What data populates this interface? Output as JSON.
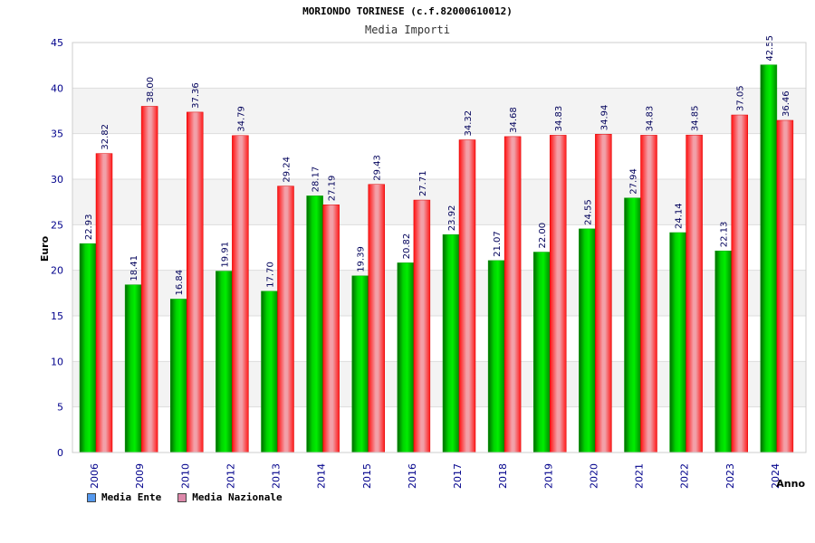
{
  "chart_data": {
    "type": "bar",
    "title": "MORIONDO TORINESE (c.f.82000610012)",
    "subtitle": "Media Importi",
    "xlabel": "Anno",
    "ylabel": "Euro",
    "ylim": [
      0,
      45
    ],
    "yticks": [
      0,
      5,
      10,
      15,
      20,
      25,
      30,
      35,
      40,
      45
    ],
    "grid": true,
    "legend_position": "bottom-left",
    "categories": [
      "2006",
      "2009",
      "2010",
      "2012",
      "2013",
      "2014",
      "2015",
      "2016",
      "2017",
      "2018",
      "2019",
      "2020",
      "2021",
      "2022",
      "2023",
      "2024"
    ],
    "series": [
      {
        "name": "Media Ente",
        "color": "#00c000",
        "legend_color": "#5599ee",
        "values": [
          22.93,
          18.41,
          16.84,
          19.91,
          17.7,
          28.17,
          19.39,
          20.82,
          23.92,
          21.07,
          22.0,
          24.55,
          27.94,
          24.14,
          22.13,
          42.55
        ],
        "labels": [
          "22.93",
          "18.41",
          "16.84",
          "19.91",
          "17.70",
          "28.17",
          "19.39",
          "20.82",
          "23.92",
          "21.07",
          "22.00",
          "24.55",
          "27.94",
          "24.14",
          "22.13",
          "42.55"
        ]
      },
      {
        "name": "Media Nazionale",
        "color": "#ee2222",
        "legend_color": "#dd88aa",
        "values": [
          32.82,
          38.0,
          37.36,
          34.79,
          29.24,
          27.19,
          29.43,
          27.71,
          34.32,
          34.68,
          34.83,
          34.94,
          34.83,
          34.85,
          37.05,
          36.46
        ],
        "labels": [
          "32.82",
          "38.00",
          "37.36",
          "34.79",
          "29.24",
          "27.19",
          "29.43",
          "27.71",
          "34.32",
          "34.68",
          "34.83",
          "34.94",
          "34.83",
          "34.85",
          "37.05",
          "36.46"
        ]
      }
    ]
  }
}
